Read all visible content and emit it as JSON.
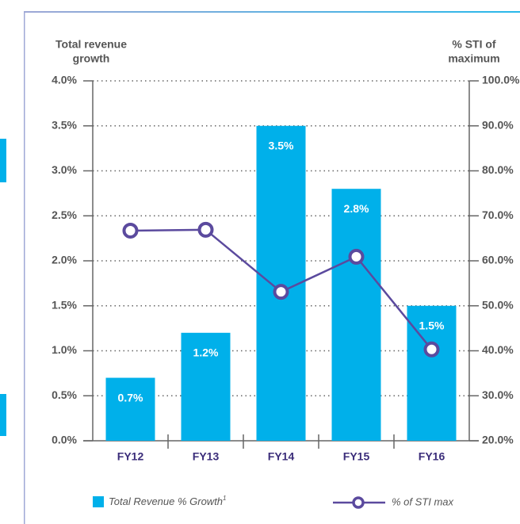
{
  "chart_data": {
    "type": "bar",
    "categories": [
      "FY12",
      "FY13",
      "FY14",
      "FY15",
      "FY16"
    ],
    "y_label": [
      "Total revenue",
      "growth"
    ],
    "y2_label": [
      "% STI of",
      "maximum"
    ],
    "series": [
      {
        "name": "Total Revenue % Growth",
        "footnote": "1",
        "color": "#00b0ea",
        "values": [
          0.7,
          1.2,
          3.5,
          2.8,
          1.5
        ],
        "value_labels": [
          "0.7%",
          "1.2%",
          "3.5%",
          "2.8%",
          "1.5%"
        ]
      },
      {
        "name": "% of STI max",
        "type": "line",
        "axis": "y2",
        "color": "#5b4a9e",
        "values": [
          66.7,
          66.9,
          53.1,
          60.9,
          40.3
        ]
      }
    ],
    "ylim": [
      0,
      4
    ],
    "yticks": [
      {
        "value": 0,
        "label": "0.0%"
      },
      {
        "value": 0.5,
        "label": "0.5%"
      },
      {
        "value": 1,
        "label": "1.0%"
      },
      {
        "value": 1.5,
        "label": "1.5%"
      },
      {
        "value": 2,
        "label": "2.0%"
      },
      {
        "value": 2.5,
        "label": "2.5%"
      },
      {
        "value": 3,
        "label": "3.0%"
      },
      {
        "value": 3.5,
        "label": "3.5%"
      },
      {
        "value": 4,
        "label": "4.0%"
      }
    ],
    "y2lim": [
      20,
      100
    ],
    "y2ticks": [
      {
        "value": 20,
        "label": "20.0%"
      },
      {
        "value": 30,
        "label": "30.0%"
      },
      {
        "value": 40,
        "label": "40.0%"
      },
      {
        "value": 50,
        "label": "50.0%"
      },
      {
        "value": 60,
        "label": "60.0%"
      },
      {
        "value": 70,
        "label": "70.0%"
      },
      {
        "value": 80,
        "label": "80.0%"
      },
      {
        "value": 90,
        "label": "90.0%"
      },
      {
        "value": 100,
        "label": "100.0%"
      }
    ],
    "grid": true
  }
}
